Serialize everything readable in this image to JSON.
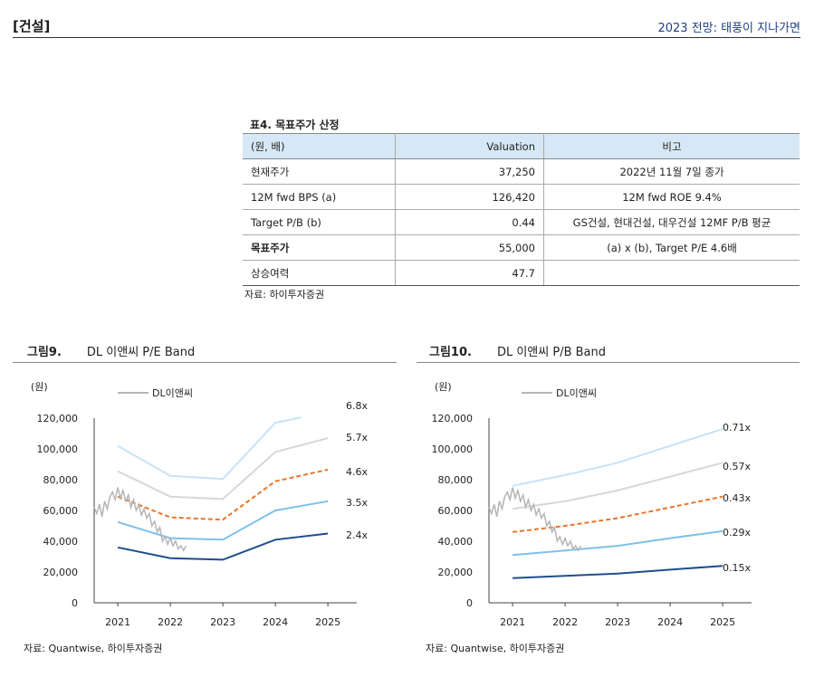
{
  "header": {
    "section": "[건설]",
    "report_title": "2023 전망: 태풍이 지나가면"
  },
  "table": {
    "title": "표4. 목표주가 산정",
    "headers": [
      "(원, 배)",
      "Valuation",
      "비고"
    ],
    "rows": [
      {
        "label": "현재주가",
        "value": "37,250",
        "note": "2022년 11월 7일 종가",
        "bold": false
      },
      {
        "label": "12M fwd BPS (a)",
        "value": "126,420",
        "note": "12M fwd ROE 9.4%",
        "bold": false
      },
      {
        "label": "Target P/B (b)",
        "value": "0.44",
        "note": "GS건설, 현대건설, 대우건설 12MF P/B 평균",
        "bold": false
      },
      {
        "label": "목표주가",
        "value": "55,000",
        "note": "(a) x (b), Target P/E 4.6배",
        "bold": true
      },
      {
        "label": "상승여력",
        "value": "47.7",
        "note": "",
        "bold": false
      }
    ],
    "source": "자료: 하이투자증권"
  },
  "figures": [
    {
      "number": "그림9.",
      "title": "DL 이앤씨 P/E Band",
      "unit": "(원)",
      "source": "자료: Quantwise, 하이투자증권"
    },
    {
      "number": "그림10.",
      "title": "DL 이앤씨 P/B Band",
      "unit": "(원)",
      "source": "자료: Quantwise, 하이투자증권"
    }
  ],
  "chart_data": [
    {
      "type": "line",
      "y_ticks": [
        "120,000",
        "100,000",
        "80,000",
        "60,000",
        "40,000",
        "20,000",
        "0"
      ],
      "ylim": [
        0,
        120000
      ],
      "x_ticks": [
        "2021",
        "2022",
        "2023",
        "2024",
        "2025"
      ],
      "xlim": [
        2020.55,
        2025.55
      ],
      "legend": "DL이앤씨",
      "series": [
        {
          "name": "6.8x",
          "style": "solid",
          "color": "#c6e3f7",
          "x": [
            2021,
            2022,
            2023,
            2024,
            2024.5
          ],
          "y": [
            102000,
            82500,
            80500,
            117000,
            120500
          ]
        },
        {
          "name": "5.7x",
          "style": "solid",
          "color": "#d8d8d8",
          "x": [
            2021,
            2022,
            2023,
            2024,
            2025
          ],
          "y": [
            85500,
            69000,
            67500,
            98000,
            107000
          ]
        },
        {
          "name": "4.6x",
          "style": "dashed",
          "color": "#e8752a",
          "x": [
            2021,
            2022,
            2023,
            2024,
            2025
          ],
          "y": [
            69000,
            55500,
            54000,
            79000,
            86500
          ]
        },
        {
          "name": "3.5x",
          "style": "solid",
          "color": "#7fc0ea",
          "x": [
            2021,
            2022,
            2023,
            2024,
            2025
          ],
          "y": [
            52500,
            42000,
            41000,
            60000,
            66000
          ]
        },
        {
          "name": "2.4x",
          "style": "solid",
          "color": "#1f4e8c",
          "x": [
            2021,
            2022,
            2023,
            2024,
            2025
          ],
          "y": [
            36000,
            29000,
            28000,
            41000,
            45000
          ]
        }
      ],
      "price": {
        "name": "DL이앤씨",
        "color": "#b5b5b5",
        "x": [
          2020.55,
          2020.6,
          2020.65,
          2020.7,
          2020.75,
          2020.8,
          2020.85,
          2020.9,
          2020.95,
          2021.0,
          2021.05,
          2021.1,
          2021.15,
          2021.2,
          2021.25,
          2021.3,
          2021.35,
          2021.4,
          2021.45,
          2021.5,
          2021.55,
          2021.6,
          2021.65,
          2021.7,
          2021.75,
          2021.8,
          2021.85,
          2021.9,
          2021.95,
          2022.0,
          2022.05,
          2022.1,
          2022.15,
          2022.2,
          2022.25,
          2022.3
        ],
        "y": [
          62000,
          58000,
          64000,
          56000,
          66000,
          61000,
          69000,
          72000,
          67000,
          75000,
          68000,
          73000,
          66000,
          70000,
          62000,
          67000,
          60000,
          64000,
          57000,
          61000,
          55000,
          58000,
          50000,
          53000,
          46000,
          49000,
          40000,
          43000,
          38000,
          42000,
          37000,
          40000,
          35000,
          37000,
          34000,
          37000
        ]
      }
    },
    {
      "type": "line",
      "y_ticks": [
        "120,000",
        "100,000",
        "80,000",
        "60,000",
        "40,000",
        "20,000",
        "0"
      ],
      "ylim": [
        0,
        120000
      ],
      "x_ticks": [
        "2021",
        "2022",
        "2023",
        "2024",
        "2025"
      ],
      "xlim": [
        2020.55,
        2025.55
      ],
      "legend": "DL이앤씨",
      "series": [
        {
          "name": "0.71x",
          "style": "solid",
          "color": "#c6e3f7",
          "x": [
            2021,
            2022,
            2023,
            2024,
            2025
          ],
          "y": [
            76000,
            83000,
            91000,
            102000,
            113000
          ]
        },
        {
          "name": "0.57x",
          "style": "solid",
          "color": "#d8d8d8",
          "x": [
            2021,
            2022,
            2023,
            2024,
            2025
          ],
          "y": [
            61000,
            66000,
            73000,
            82000,
            91000
          ]
        },
        {
          "name": "0.43x",
          "style": "dashed",
          "color": "#e8752a",
          "x": [
            2021,
            2022,
            2023,
            2024,
            2025
          ],
          "y": [
            46000,
            50000,
            55000,
            62000,
            69000
          ]
        },
        {
          "name": "0.29x",
          "style": "solid",
          "color": "#7fc0ea",
          "x": [
            2021,
            2022,
            2023,
            2024,
            2025
          ],
          "y": [
            31000,
            34000,
            37000,
            42000,
            46500
          ]
        },
        {
          "name": "0.15x",
          "style": "solid",
          "color": "#1f4e8c",
          "x": [
            2021,
            2022,
            2023,
            2024,
            2025
          ],
          "y": [
            16000,
            17500,
            19000,
            21500,
            24000
          ]
        }
      ],
      "price": {
        "name": "DL이앤씨",
        "color": "#b5b5b5",
        "x": [
          2020.55,
          2020.6,
          2020.65,
          2020.7,
          2020.75,
          2020.8,
          2020.85,
          2020.9,
          2020.95,
          2021.0,
          2021.05,
          2021.1,
          2021.15,
          2021.2,
          2021.25,
          2021.3,
          2021.35,
          2021.4,
          2021.45,
          2021.5,
          2021.55,
          2021.6,
          2021.65,
          2021.7,
          2021.75,
          2021.8,
          2021.85,
          2021.9,
          2021.95,
          2022.0,
          2022.05,
          2022.1,
          2022.15,
          2022.2,
          2022.25,
          2022.3
        ],
        "y": [
          62000,
          58000,
          64000,
          56000,
          66000,
          61000,
          69000,
          72000,
          67000,
          75000,
          68000,
          73000,
          66000,
          70000,
          62000,
          67000,
          60000,
          64000,
          57000,
          61000,
          55000,
          58000,
          50000,
          53000,
          46000,
          49000,
          40000,
          43000,
          38000,
          42000,
          37000,
          40000,
          35000,
          37000,
          34000,
          37000
        ]
      }
    }
  ]
}
